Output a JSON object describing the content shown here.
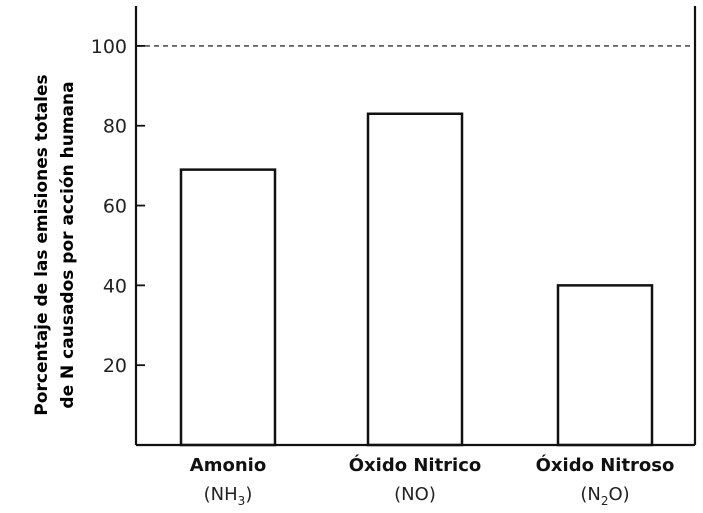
{
  "chart_data": {
    "type": "bar",
    "categories": [
      {
        "name": "Amonio",
        "formula_main": "(NH",
        "formula_sub": "3",
        "formula_end": ")"
      },
      {
        "name": "Óxido Nitrico",
        "formula_main": "(NO",
        "formula_sub": "",
        "formula_end": ")"
      },
      {
        "name": "Óxido Nitroso",
        "formula_main": "(N",
        "formula_sub": "2",
        "formula_end": "O)"
      }
    ],
    "values": [
      69,
      83,
      40
    ],
    "ylabel_lines": [
      "Porcentaje de las emisiones totales",
      "de N causados por acción humana"
    ],
    "ylim": [
      0,
      110
    ],
    "yticks": [
      20,
      40,
      60,
      80,
      100
    ],
    "reference_line": 100,
    "grid": false,
    "legend": "none",
    "bar_fill": "#ffffff",
    "bar_stroke": "#111111"
  }
}
